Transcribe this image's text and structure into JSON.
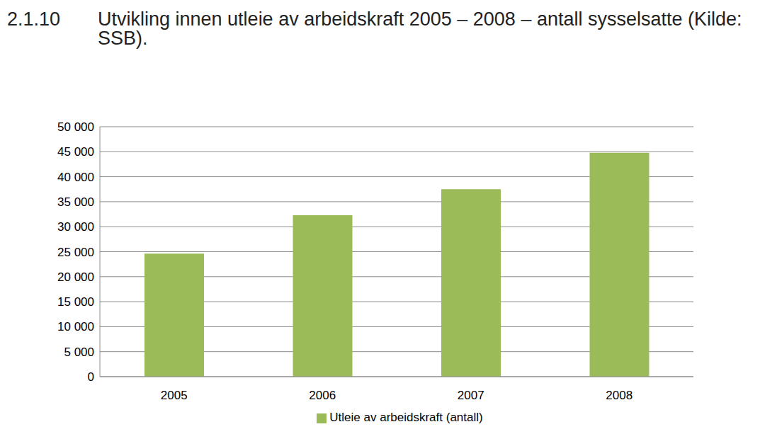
{
  "chart_data": {
    "type": "bar",
    "title": "2.1.10 Utvikling innen utleie av arbeidskraft 2005 – 2008 – antall sysselsatte (Kilde: SSB).",
    "categories": [
      "2005",
      "2006",
      "2007",
      "2008"
    ],
    "series": [
      {
        "name": "Utleie av arbeidskraft (antall)",
        "color": "#9bbb59",
        "values": [
          24600,
          32300,
          37500,
          44800
        ]
      }
    ],
    "ylim": [
      0,
      50000
    ],
    "yticks": [
      0,
      {
        "value": 5000,
        "label": "5 000"
      },
      {
        "value": 10000,
        "label": "10 000"
      },
      {
        "value": 15000,
        "label": "15 000"
      },
      {
        "value": 20000,
        "label": "20 000"
      },
      {
        "value": 25000,
        "label": "25 000"
      },
      {
        "value": 30000,
        "label": "30 000"
      },
      {
        "value": 35000,
        "label": "35 000"
      },
      {
        "value": 40000,
        "label": "40 000"
      },
      {
        "value": 45000,
        "label": "45 000"
      },
      {
        "value": 50000,
        "label": "50 000"
      }
    ],
    "grid": true,
    "legend": "bottom"
  }
}
